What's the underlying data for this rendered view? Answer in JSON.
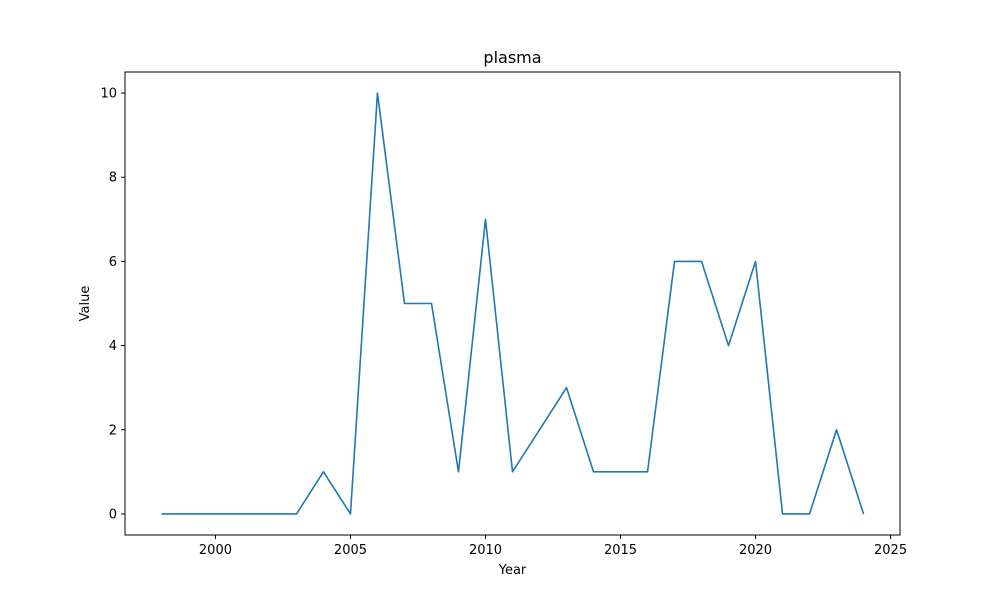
{
  "chart_data": {
    "type": "line",
    "title": "plasma",
    "xlabel": "Year",
    "ylabel": "Value",
    "xlim": [
      1996.65,
      2025.35
    ],
    "ylim": [
      -0.5,
      10.5
    ],
    "xticks": [
      2000,
      2005,
      2010,
      2015,
      2020,
      2025
    ],
    "yticks": [
      0,
      2,
      4,
      6,
      8,
      10
    ],
    "grid": false,
    "series": [
      {
        "color": "#1f77b4",
        "x": [
          1998,
          1999,
          2000,
          2001,
          2002,
          2003,
          2004,
          2005,
          2006,
          2007,
          2008,
          2009,
          2010,
          2011,
          2012,
          2013,
          2014,
          2015,
          2016,
          2017,
          2018,
          2019,
          2020,
          2021,
          2022,
          2023,
          2024
        ],
        "y": [
          0,
          0,
          0,
          0,
          0,
          0,
          1,
          0,
          10,
          5,
          5,
          1,
          7,
          1,
          2,
          3,
          1,
          1,
          1,
          6,
          6,
          4,
          6,
          0,
          0,
          2,
          0
        ]
      }
    ]
  }
}
